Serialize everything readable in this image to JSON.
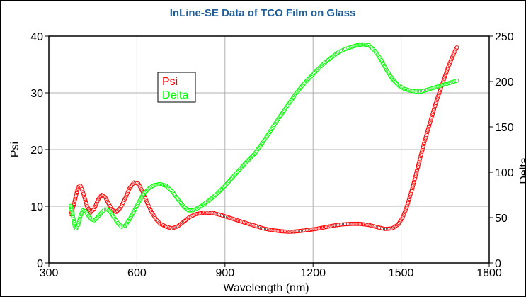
{
  "chart_data": {
    "type": "scatter",
    "title": "InLine-SE Data of TCO Film on Glass",
    "xlabel": "Wavelength (nm)",
    "ylabel_left": "Psi",
    "ylabel_right": "Delta",
    "xlim": [
      300,
      1800
    ],
    "ylim_left": [
      0,
      40
    ],
    "ylim_right": [
      0,
      250
    ],
    "x_ticks": [
      "300",
      "600",
      "900",
      "1200",
      "1500",
      "1800"
    ],
    "y_ticks_left": [
      "0",
      "10",
      "20",
      "30",
      "40"
    ],
    "y_ticks_right": [
      "0",
      "50",
      "100",
      "150",
      "200",
      "250"
    ],
    "grid": true,
    "legend": {
      "placement": "upper-left",
      "entries": [
        "Psi",
        "Delta"
      ]
    },
    "series": [
      {
        "name": "Psi",
        "color": "#ff0000",
        "axis": "left",
        "points": [
          [
            375,
            8.6
          ],
          [
            385,
            10.2
          ],
          [
            392,
            11.8
          ],
          [
            400,
            13.4
          ],
          [
            408,
            13.6
          ],
          [
            418,
            12.2
          ],
          [
            430,
            10.0
          ],
          [
            442,
            8.9
          ],
          [
            455,
            9.6
          ],
          [
            468,
            11.2
          ],
          [
            480,
            12.0
          ],
          [
            492,
            11.6
          ],
          [
            505,
            10.3
          ],
          [
            518,
            9.3
          ],
          [
            530,
            9.0
          ],
          [
            545,
            9.8
          ],
          [
            560,
            11.4
          ],
          [
            575,
            13.2
          ],
          [
            590,
            14.2
          ],
          [
            605,
            14.0
          ],
          [
            620,
            12.5
          ],
          [
            635,
            10.6
          ],
          [
            650,
            9.0
          ],
          [
            665,
            7.7
          ],
          [
            680,
            6.9
          ],
          [
            700,
            6.4
          ],
          [
            720,
            6.1
          ],
          [
            740,
            6.5
          ],
          [
            760,
            7.3
          ],
          [
            780,
            8.1
          ],
          [
            800,
            8.6
          ],
          [
            830,
            8.9
          ],
          [
            860,
            8.8
          ],
          [
            890,
            8.4
          ],
          [
            920,
            7.9
          ],
          [
            950,
            7.4
          ],
          [
            980,
            6.9
          ],
          [
            1000,
            6.6
          ],
          [
            1030,
            6.1
          ],
          [
            1060,
            5.8
          ],
          [
            1090,
            5.6
          ],
          [
            1120,
            5.5
          ],
          [
            1150,
            5.6
          ],
          [
            1180,
            5.8
          ],
          [
            1210,
            6.0
          ],
          [
            1240,
            6.3
          ],
          [
            1270,
            6.6
          ],
          [
            1300,
            6.8
          ],
          [
            1330,
            6.9
          ],
          [
            1360,
            6.9
          ],
          [
            1390,
            6.7
          ],
          [
            1420,
            6.3
          ],
          [
            1445,
            6.0
          ],
          [
            1470,
            6.1
          ],
          [
            1490,
            6.8
          ],
          [
            1505,
            8.0
          ],
          [
            1520,
            10.0
          ],
          [
            1540,
            13.5
          ],
          [
            1560,
            17.5
          ],
          [
            1580,
            21.5
          ],
          [
            1600,
            25.0
          ],
          [
            1620,
            28.5
          ],
          [
            1640,
            31.5
          ],
          [
            1660,
            34.5
          ],
          [
            1680,
            37.0
          ],
          [
            1690,
            38.0
          ]
        ]
      },
      {
        "name": "Delta",
        "color": "#00ff00",
        "axis": "right",
        "points": [
          [
            375,
            63
          ],
          [
            382,
            52
          ],
          [
            388,
            41
          ],
          [
            393,
            38
          ],
          [
            400,
            42
          ],
          [
            408,
            52
          ],
          [
            416,
            58
          ],
          [
            425,
            57
          ],
          [
            435,
            52
          ],
          [
            445,
            48
          ],
          [
            455,
            47
          ],
          [
            465,
            50
          ],
          [
            478,
            55
          ],
          [
            490,
            59
          ],
          [
            500,
            59
          ],
          [
            510,
            56
          ],
          [
            522,
            50
          ],
          [
            535,
            44
          ],
          [
            548,
            40
          ],
          [
            560,
            41
          ],
          [
            575,
            48
          ],
          [
            590,
            57
          ],
          [
            605,
            66
          ],
          [
            620,
            75
          ],
          [
            640,
            82
          ],
          [
            660,
            86
          ],
          [
            680,
            87
          ],
          [
            700,
            85
          ],
          [
            720,
            79
          ],
          [
            740,
            70
          ],
          [
            760,
            62
          ],
          [
            775,
            58
          ],
          [
            790,
            58
          ],
          [
            805,
            60
          ],
          [
            825,
            64
          ],
          [
            850,
            70
          ],
          [
            875,
            77
          ],
          [
            900,
            85
          ],
          [
            925,
            94
          ],
          [
            950,
            103
          ],
          [
            975,
            112
          ],
          [
            1000,
            120
          ],
          [
            1025,
            131
          ],
          [
            1050,
            143
          ],
          [
            1080,
            158
          ],
          [
            1110,
            172
          ],
          [
            1140,
            186
          ],
          [
            1170,
            198
          ],
          [
            1200,
            208
          ],
          [
            1230,
            218
          ],
          [
            1260,
            226
          ],
          [
            1290,
            233
          ],
          [
            1320,
            237
          ],
          [
            1350,
            240
          ],
          [
            1370,
            241
          ],
          [
            1390,
            240
          ],
          [
            1410,
            234
          ],
          [
            1430,
            225
          ],
          [
            1450,
            213
          ],
          [
            1470,
            203
          ],
          [
            1490,
            196
          ],
          [
            1510,
            192
          ],
          [
            1530,
            190
          ],
          [
            1550,
            189
          ],
          [
            1570,
            189
          ],
          [
            1590,
            191
          ],
          [
            1620,
            194
          ],
          [
            1650,
            197
          ],
          [
            1680,
            200
          ],
          [
            1690,
            201
          ]
        ]
      }
    ]
  }
}
